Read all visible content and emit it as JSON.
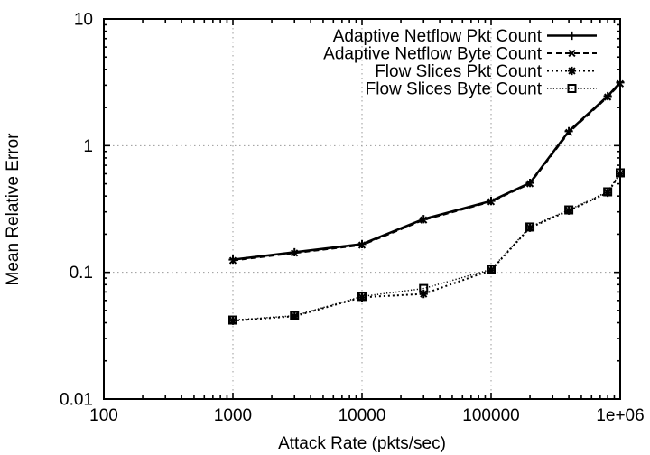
{
  "chart_data": {
    "type": "line",
    "title": "",
    "xlabel": "Attack Rate (pkts/sec)",
    "ylabel": "Mean Relative Error",
    "xscale": "log",
    "yscale": "log",
    "xlim": [
      100,
      1000000
    ],
    "ylim": [
      0.01,
      10
    ],
    "xtick_labels": [
      "100",
      "1000",
      "10000",
      "100000",
      "1e+06"
    ],
    "xtick_values": [
      100,
      1000,
      10000,
      100000,
      1000000
    ],
    "ytick_labels": [
      "0.01",
      "0.1",
      "1",
      "10"
    ],
    "ytick_values": [
      0.01,
      0.1,
      1,
      10
    ],
    "grid": true,
    "legend_position": "top-right-inside",
    "x": [
      1000,
      3000,
      10000,
      30000,
      100000,
      200000,
      400000,
      800000,
      1000000
    ],
    "series": [
      {
        "name": "Adaptive Netflow Pkt Count",
        "style": "solid",
        "marker": "plus",
        "values": [
          0.126,
          0.144,
          0.167,
          0.263,
          0.366,
          0.508,
          1.3,
          2.46,
          3.15
        ]
      },
      {
        "name": "Adaptive Netflow Byte Count",
        "style": "dashed",
        "marker": "cross",
        "values": [
          0.124,
          0.142,
          0.164,
          0.259,
          0.361,
          0.501,
          1.27,
          2.42,
          3.08
        ]
      },
      {
        "name": "Flow Slices Pkt Count",
        "style": "dotted",
        "marker": "asterisk",
        "values": [
          0.0415,
          0.045,
          0.0635,
          0.0675,
          0.104,
          0.225,
          0.307,
          0.425,
          0.6
        ]
      },
      {
        "name": "Flow Slices Byte Count",
        "style": "fine-dotted",
        "marker": "square",
        "values": [
          0.042,
          0.0455,
          0.0645,
          0.0745,
          0.1055,
          0.228,
          0.311,
          0.432,
          0.61
        ]
      }
    ],
    "colors": {
      "foreground": "#000000",
      "background": "#ffffff",
      "grid": "#9a9a9a"
    }
  }
}
